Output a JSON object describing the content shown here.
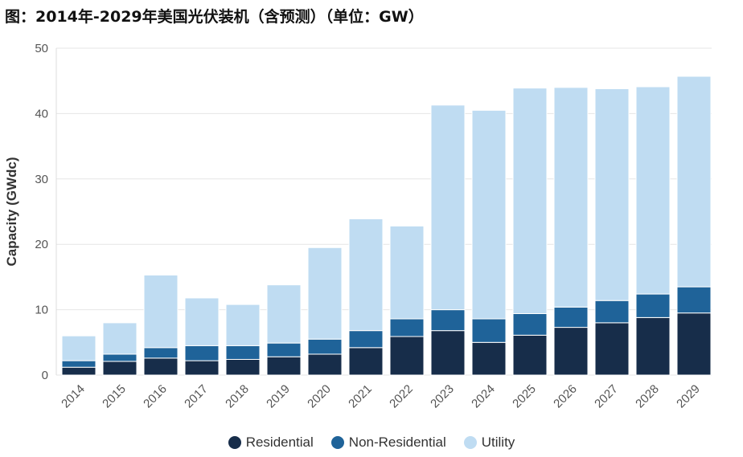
{
  "title": "图：2014年-2029年美国光伏装机（含预测）（单位：GW）",
  "colors": {
    "residential": "#172d4a",
    "non_residential": "#1f6399",
    "utility": "#bfdcf2",
    "grid": "#e6e6e6"
  },
  "chart_data": {
    "type": "bar",
    "stacked": true,
    "title": "图：2014年-2029年美国光伏装机（含预测）（单位：GW）",
    "xlabel": "",
    "ylabel": "Capacity (GWdc)",
    "ylim": [
      0,
      50
    ],
    "yticks": [
      0,
      10,
      20,
      30,
      40,
      50
    ],
    "grid": true,
    "legend_position": "bottom",
    "categories": [
      "2014",
      "2015",
      "2016",
      "2017",
      "2018",
      "2019",
      "2020",
      "2021",
      "2022",
      "2023",
      "2024",
      "2025",
      "2026",
      "2027",
      "2028",
      "2029"
    ],
    "series": [
      {
        "name": "Residential",
        "values": [
          1.2,
          2.1,
          2.6,
          2.2,
          2.4,
          2.8,
          3.2,
          4.2,
          5.9,
          6.8,
          5.0,
          6.1,
          7.3,
          8.0,
          8.8,
          9.5
        ]
      },
      {
        "name": "Non-Residential",
        "values": [
          1.0,
          1.1,
          1.6,
          2.3,
          2.1,
          2.1,
          2.3,
          2.6,
          2.7,
          3.2,
          3.6,
          3.3,
          3.1,
          3.4,
          3.6,
          4.0
        ]
      },
      {
        "name": "Utility",
        "values": [
          3.8,
          4.8,
          11.1,
          7.3,
          6.3,
          8.9,
          14.0,
          17.1,
          14.2,
          31.3,
          31.9,
          34.5,
          33.6,
          32.4,
          31.7,
          32.2
        ]
      }
    ]
  }
}
